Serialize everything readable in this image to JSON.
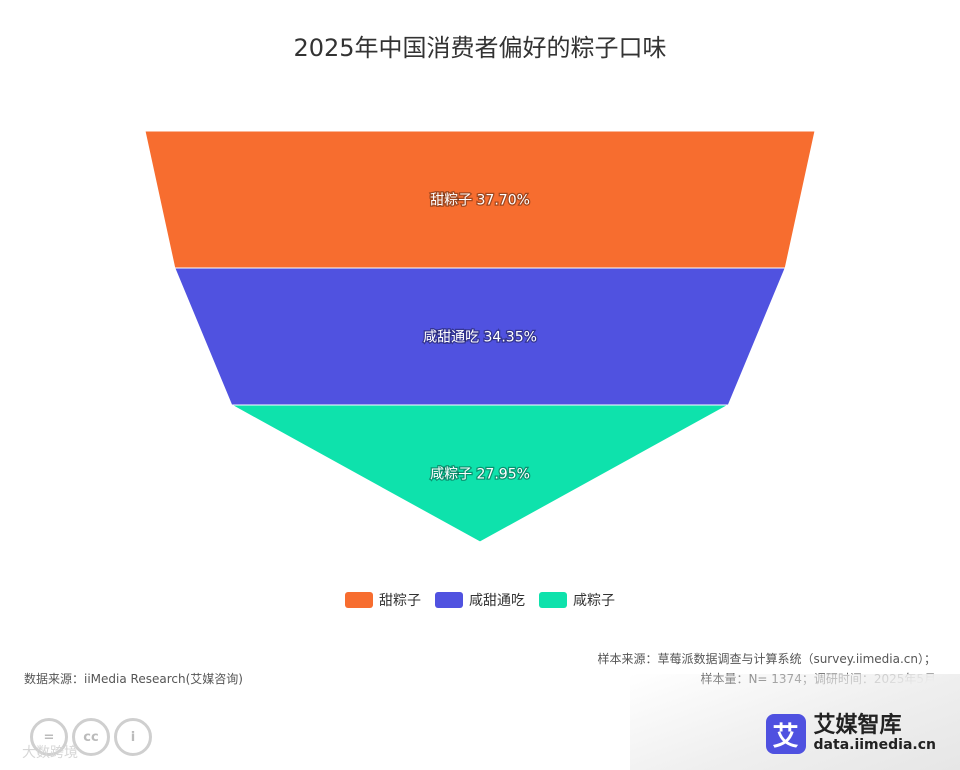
{
  "chart_data": {
    "type": "funnel",
    "title": "2025年中国消费者偏好的粽子口味",
    "categories": [
      "甜粽子",
      "咸甜通吃",
      "咸粽子"
    ],
    "values": [
      37.7,
      34.35,
      27.95
    ],
    "labels": [
      "甜粽子 37.70%",
      "咸甜通吃 34.35%",
      "咸粽子 27.95%"
    ],
    "colors": [
      "#f76d2f",
      "#5052e0",
      "#0ee2ac"
    ],
    "legend_position": "bottom-center"
  },
  "notes": {
    "sample_source": "样本来源：草莓派数据调查与计算系统（survey.iimedia.cn）；",
    "sample_size": "样本量：N= 1374；调研时间：2025年5月",
    "data_source": "数据来源：iiMedia Research(艾媒咨询)"
  },
  "brand": {
    "mark": "艾",
    "name": "艾媒智库",
    "url": "data.iimedia.cn"
  },
  "license_icons": [
    "=",
    "cc",
    "i"
  ],
  "watermark": "大数跨境"
}
